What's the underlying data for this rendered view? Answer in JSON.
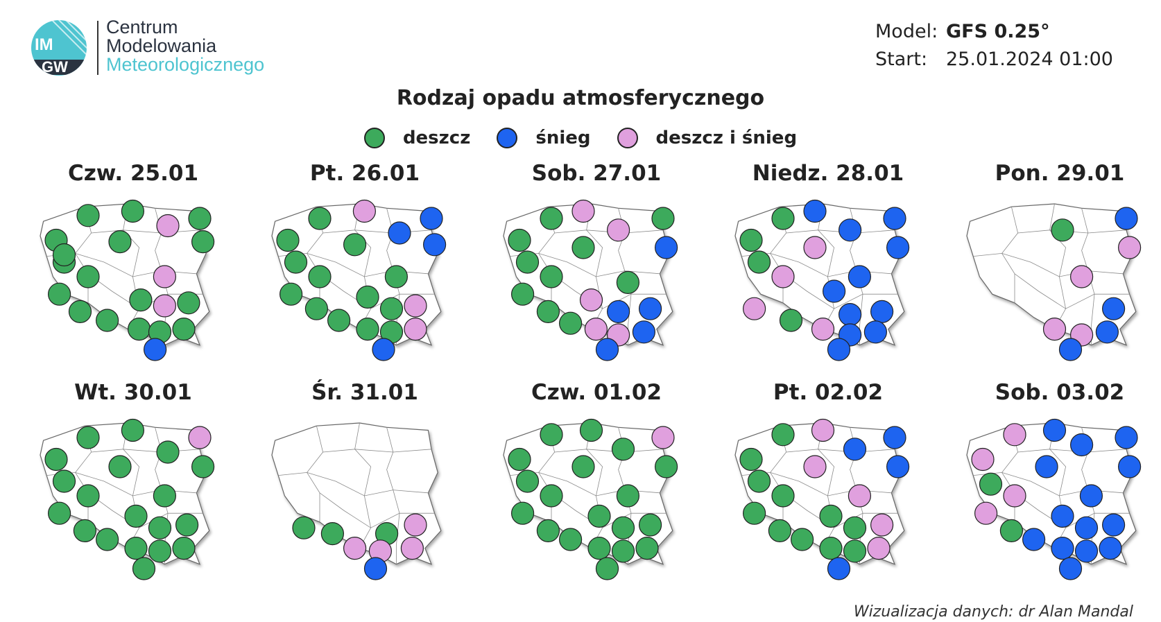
{
  "logo": {
    "mark": "IMGW",
    "line1": "Centrum",
    "line2": "Modelowania",
    "line3": "Meteorologicznego"
  },
  "meta": {
    "model_label": "Model:",
    "model_value": "GFS 0.25°",
    "start_label": "Start:",
    "start_value": "25.01.2024 01:00"
  },
  "title": "Rodzaj opadu atmosferycznego",
  "legend": [
    {
      "label": "deszcz",
      "type": "rain",
      "color": "#3daa5c"
    },
    {
      "label": "śnieg",
      "type": "snow",
      "color": "#1e64f0"
    },
    {
      "label": "deszcz i śnieg",
      "type": "mix",
      "color": "#e0a0de"
    }
  ],
  "colors": {
    "rain": "#3daa5c",
    "snow": "#1e64f0",
    "mix": "#e0a0de",
    "outline": "#222222"
  },
  "days": [
    {
      "label": "Czw. 25.01",
      "points": [
        [
          0.1,
          0.25,
          "rain"
        ],
        [
          0.3,
          0.08,
          "rain"
        ],
        [
          0.58,
          0.05,
          "rain"
        ],
        [
          0.8,
          0.15,
          "mix"
        ],
        [
          1.0,
          0.1,
          "rain"
        ],
        [
          0.15,
          0.4,
          "rain"
        ],
        [
          0.5,
          0.26,
          "rain"
        ],
        [
          1.02,
          0.26,
          "rain"
        ],
        [
          0.15,
          0.35,
          "rain"
        ],
        [
          0.3,
          0.5,
          "rain"
        ],
        [
          0.78,
          0.5,
          "mix"
        ],
        [
          0.12,
          0.62,
          "rain"
        ],
        [
          0.25,
          0.74,
          "rain"
        ],
        [
          0.63,
          0.66,
          "rain"
        ],
        [
          0.78,
          0.7,
          "mix"
        ],
        [
          0.93,
          0.68,
          "rain"
        ],
        [
          0.42,
          0.8,
          "rain"
        ],
        [
          0.62,
          0.86,
          "rain"
        ],
        [
          0.75,
          0.88,
          "rain"
        ],
        [
          0.9,
          0.86,
          "rain"
        ],
        [
          0.72,
          1.0,
          "snow"
        ]
      ]
    },
    {
      "label": "Pt. 26.01",
      "points": [
        [
          0.1,
          0.25,
          "rain"
        ],
        [
          0.3,
          0.1,
          "rain"
        ],
        [
          0.58,
          0.05,
          "mix"
        ],
        [
          0.8,
          0.2,
          "snow"
        ],
        [
          1.0,
          0.1,
          "snow"
        ],
        [
          0.15,
          0.4,
          "rain"
        ],
        [
          0.52,
          0.28,
          "rain"
        ],
        [
          1.02,
          0.28,
          "snow"
        ],
        [
          0.3,
          0.5,
          "rain"
        ],
        [
          0.78,
          0.5,
          "rain"
        ],
        [
          0.12,
          0.62,
          "rain"
        ],
        [
          0.28,
          0.72,
          "rain"
        ],
        [
          0.6,
          0.64,
          "rain"
        ],
        [
          0.75,
          0.72,
          "rain"
        ],
        [
          0.9,
          0.7,
          "mix"
        ],
        [
          0.42,
          0.8,
          "rain"
        ],
        [
          0.6,
          0.86,
          "rain"
        ],
        [
          0.75,
          0.88,
          "rain"
        ],
        [
          0.9,
          0.86,
          "mix"
        ],
        [
          0.7,
          1.0,
          "snow"
        ]
      ]
    },
    {
      "label": "Sob. 27.01",
      "points": [
        [
          0.1,
          0.25,
          "rain"
        ],
        [
          0.3,
          0.1,
          "rain"
        ],
        [
          0.5,
          0.05,
          "mix"
        ],
        [
          0.72,
          0.18,
          "mix"
        ],
        [
          1.0,
          0.1,
          "rain"
        ],
        [
          0.15,
          0.4,
          "rain"
        ],
        [
          0.5,
          0.3,
          "rain"
        ],
        [
          1.02,
          0.3,
          "snow"
        ],
        [
          0.3,
          0.5,
          "rain"
        ],
        [
          0.78,
          0.54,
          "rain"
        ],
        [
          0.12,
          0.62,
          "rain"
        ],
        [
          0.28,
          0.74,
          "rain"
        ],
        [
          0.55,
          0.66,
          "mix"
        ],
        [
          0.72,
          0.74,
          "snow"
        ],
        [
          0.92,
          0.72,
          "snow"
        ],
        [
          0.42,
          0.82,
          "rain"
        ],
        [
          0.58,
          0.86,
          "mix"
        ],
        [
          0.72,
          0.9,
          "mix"
        ],
        [
          0.88,
          0.88,
          "snow"
        ],
        [
          0.65,
          1.0,
          "snow"
        ]
      ]
    },
    {
      "label": "Niedz. 28.01",
      "points": [
        [
          0.1,
          0.25,
          "rain"
        ],
        [
          0.3,
          0.1,
          "rain"
        ],
        [
          0.5,
          0.05,
          "snow"
        ],
        [
          0.72,
          0.18,
          "snow"
        ],
        [
          1.0,
          0.1,
          "snow"
        ],
        [
          0.15,
          0.4,
          "rain"
        ],
        [
          0.5,
          0.3,
          "mix"
        ],
        [
          1.02,
          0.3,
          "snow"
        ],
        [
          0.3,
          0.5,
          "mix"
        ],
        [
          0.78,
          0.5,
          "snow"
        ],
        [
          0.62,
          0.6,
          "snow"
        ],
        [
          0.12,
          0.72,
          "mix"
        ],
        [
          0.35,
          0.8,
          "rain"
        ],
        [
          0.72,
          0.76,
          "snow"
        ],
        [
          0.92,
          0.74,
          "snow"
        ],
        [
          0.55,
          0.86,
          "mix"
        ],
        [
          0.72,
          0.9,
          "snow"
        ],
        [
          0.88,
          0.88,
          "snow"
        ],
        [
          0.65,
          1.0,
          "snow"
        ]
      ]
    },
    {
      "label": "Pon. 29.01",
      "points": [
        [
          0.6,
          0.18,
          "rain"
        ],
        [
          1.0,
          0.1,
          "snow"
        ],
        [
          1.02,
          0.3,
          "mix"
        ],
        [
          0.72,
          0.5,
          "mix"
        ],
        [
          0.92,
          0.72,
          "snow"
        ],
        [
          0.55,
          0.86,
          "mix"
        ],
        [
          0.72,
          0.9,
          "mix"
        ],
        [
          0.88,
          0.88,
          "snow"
        ],
        [
          0.65,
          1.0,
          "snow"
        ]
      ]
    },
    {
      "label": "Wt. 30.01",
      "points": [
        [
          0.1,
          0.25,
          "rain"
        ],
        [
          0.3,
          0.1,
          "rain"
        ],
        [
          0.58,
          0.05,
          "rain"
        ],
        [
          0.8,
          0.2,
          "rain"
        ],
        [
          1.0,
          0.1,
          "mix"
        ],
        [
          0.15,
          0.4,
          "rain"
        ],
        [
          0.5,
          0.3,
          "rain"
        ],
        [
          1.02,
          0.3,
          "rain"
        ],
        [
          0.3,
          0.5,
          "rain"
        ],
        [
          0.78,
          0.5,
          "rain"
        ],
        [
          0.12,
          0.62,
          "rain"
        ],
        [
          0.28,
          0.74,
          "rain"
        ],
        [
          0.6,
          0.64,
          "rain"
        ],
        [
          0.75,
          0.72,
          "rain"
        ],
        [
          0.92,
          0.7,
          "rain"
        ],
        [
          0.42,
          0.8,
          "rain"
        ],
        [
          0.6,
          0.86,
          "rain"
        ],
        [
          0.75,
          0.88,
          "rain"
        ],
        [
          0.9,
          0.86,
          "rain"
        ],
        [
          0.65,
          1.0,
          "rain"
        ]
      ]
    },
    {
      "label": "Śr. 31.01",
      "points": [
        [
          0.2,
          0.72,
          "rain"
        ],
        [
          0.38,
          0.76,
          "rain"
        ],
        [
          0.72,
          0.76,
          "rain"
        ],
        [
          0.9,
          0.7,
          "mix"
        ],
        [
          0.52,
          0.86,
          "mix"
        ],
        [
          0.68,
          0.88,
          "mix"
        ],
        [
          0.88,
          0.86,
          "mix"
        ],
        [
          0.65,
          1.0,
          "snow"
        ]
      ]
    },
    {
      "label": "Czw. 01.02",
      "points": [
        [
          0.1,
          0.25,
          "rain"
        ],
        [
          0.3,
          0.08,
          "rain"
        ],
        [
          0.55,
          0.05,
          "rain"
        ],
        [
          0.75,
          0.18,
          "rain"
        ],
        [
          1.0,
          0.1,
          "mix"
        ],
        [
          0.15,
          0.4,
          "rain"
        ],
        [
          0.5,
          0.3,
          "rain"
        ],
        [
          1.02,
          0.3,
          "rain"
        ],
        [
          0.3,
          0.5,
          "rain"
        ],
        [
          0.78,
          0.5,
          "rain"
        ],
        [
          0.12,
          0.62,
          "rain"
        ],
        [
          0.28,
          0.74,
          "rain"
        ],
        [
          0.6,
          0.64,
          "rain"
        ],
        [
          0.75,
          0.72,
          "rain"
        ],
        [
          0.92,
          0.7,
          "rain"
        ],
        [
          0.42,
          0.8,
          "rain"
        ],
        [
          0.6,
          0.86,
          "rain"
        ],
        [
          0.75,
          0.88,
          "rain"
        ],
        [
          0.9,
          0.86,
          "rain"
        ],
        [
          0.65,
          1.0,
          "rain"
        ]
      ]
    },
    {
      "label": "Pt. 02.02",
      "points": [
        [
          0.1,
          0.25,
          "rain"
        ],
        [
          0.3,
          0.08,
          "rain"
        ],
        [
          0.55,
          0.05,
          "mix"
        ],
        [
          0.75,
          0.18,
          "snow"
        ],
        [
          1.0,
          0.1,
          "snow"
        ],
        [
          0.15,
          0.4,
          "rain"
        ],
        [
          0.5,
          0.3,
          "mix"
        ],
        [
          1.02,
          0.3,
          "snow"
        ],
        [
          0.3,
          0.5,
          "rain"
        ],
        [
          0.78,
          0.5,
          "mix"
        ],
        [
          0.12,
          0.62,
          "rain"
        ],
        [
          0.28,
          0.74,
          "rain"
        ],
        [
          0.6,
          0.64,
          "rain"
        ],
        [
          0.75,
          0.72,
          "rain"
        ],
        [
          0.92,
          0.7,
          "mix"
        ],
        [
          0.42,
          0.8,
          "rain"
        ],
        [
          0.6,
          0.86,
          "rain"
        ],
        [
          0.75,
          0.88,
          "rain"
        ],
        [
          0.9,
          0.86,
          "mix"
        ],
        [
          0.65,
          1.0,
          "snow"
        ]
      ]
    },
    {
      "label": "Sob. 03.02",
      "points": [
        [
          0.1,
          0.25,
          "mix"
        ],
        [
          0.3,
          0.08,
          "mix"
        ],
        [
          0.55,
          0.05,
          "snow"
        ],
        [
          0.72,
          0.15,
          "snow"
        ],
        [
          1.0,
          0.1,
          "snow"
        ],
        [
          0.15,
          0.42,
          "rain"
        ],
        [
          0.5,
          0.3,
          "snow"
        ],
        [
          1.02,
          0.3,
          "snow"
        ],
        [
          0.3,
          0.5,
          "mix"
        ],
        [
          0.78,
          0.5,
          "snow"
        ],
        [
          0.12,
          0.62,
          "mix"
        ],
        [
          0.28,
          0.74,
          "rain"
        ],
        [
          0.6,
          0.64,
          "snow"
        ],
        [
          0.75,
          0.72,
          "snow"
        ],
        [
          0.92,
          0.7,
          "snow"
        ],
        [
          0.42,
          0.8,
          "snow"
        ],
        [
          0.6,
          0.86,
          "snow"
        ],
        [
          0.75,
          0.88,
          "snow"
        ],
        [
          0.9,
          0.86,
          "snow"
        ],
        [
          0.65,
          1.0,
          "snow"
        ]
      ]
    }
  ],
  "credit": "Wizualizacja danych: dr Alan Mandal"
}
